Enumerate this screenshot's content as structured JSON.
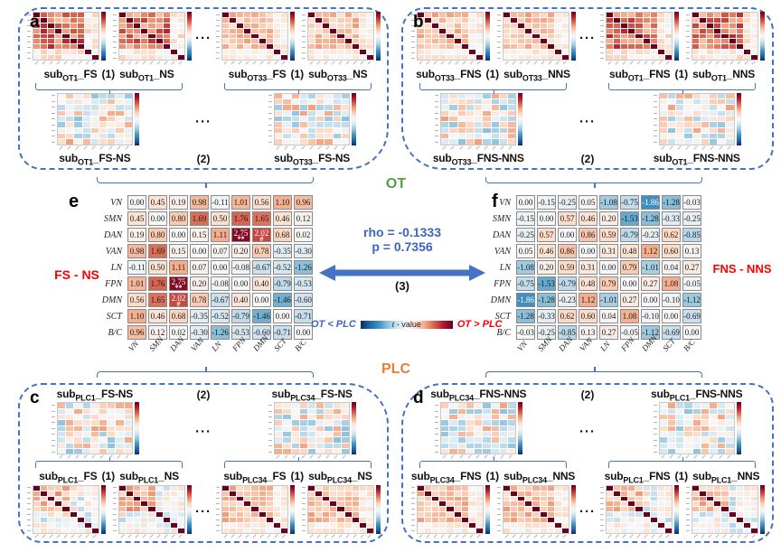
{
  "figure": {
    "ot_label": "OT",
    "plc_label": "PLC",
    "sub_prefix": "sub",
    "dots": "···",
    "colors": {
      "accent_blue": "#4472C4",
      "ot_green": "#58A044",
      "plc_orange": "#ED7D31",
      "contrast_red": "#FF0000",
      "cmap_negative_end": "#053061",
      "cmap_positive_end": "#67001F"
    }
  },
  "center": {
    "rho_line": "rho = -0.1333",
    "p_line": "p = 0.7356",
    "step3": "(3)",
    "colorbar": {
      "left_label": "OT < PLC",
      "title_t": "t",
      "title_rest": " - value",
      "right_label": "OT > PLC"
    }
  },
  "network_labels": [
    "VN",
    "SMN",
    "DAN",
    "VAN",
    "LN",
    "FPN",
    "DMN",
    "SCT",
    "B/C"
  ],
  "matrix_e": {
    "letter": "e",
    "side_label": "FS - NS",
    "values": [
      [
        0.0,
        0.45,
        0.19,
        0.98,
        -0.11,
        1.01,
        0.56,
        1.1,
        0.96
      ],
      [
        0.45,
        0.0,
        0.8,
        1.69,
        0.5,
        1.76,
        1.65,
        0.46,
        0.12
      ],
      [
        0.19,
        0.8,
        0.0,
        0.15,
        1.11,
        2.75,
        2.02,
        0.68,
        0.02
      ],
      [
        0.98,
        1.69,
        0.15,
        0.0,
        0.07,
        0.2,
        0.78,
        -0.35,
        -0.3
      ],
      [
        -0.11,
        0.5,
        1.11,
        0.07,
        0.0,
        -0.08,
        -0.67,
        -0.52,
        -1.26
      ],
      [
        1.01,
        1.76,
        2.75,
        0.2,
        -0.08,
        0.0,
        0.4,
        -0.79,
        -0.53
      ],
      [
        0.56,
        1.65,
        2.02,
        0.78,
        -0.67,
        0.4,
        0.0,
        -1.46,
        -0.6
      ],
      [
        1.1,
        0.46,
        0.68,
        -0.35,
        -0.52,
        -0.79,
        -1.46,
        0.0,
        -0.71
      ],
      [
        0.96,
        0.12,
        0.02,
        -0.3,
        -1.26,
        -0.53,
        -0.6,
        -0.71,
        0.0
      ]
    ],
    "markers": [
      [
        2,
        5,
        "**"
      ],
      [
        5,
        2,
        "**"
      ],
      [
        2,
        6,
        "#"
      ],
      [
        6,
        2,
        "#"
      ]
    ]
  },
  "matrix_f": {
    "letter": "f",
    "side_label": "FNS - NNS",
    "values": [
      [
        0.0,
        -0.15,
        -0.25,
        0.05,
        -1.08,
        -0.75,
        -1.86,
        -1.28,
        -0.03
      ],
      [
        -0.15,
        0.0,
        0.57,
        0.46,
        0.2,
        -1.53,
        -1.28,
        -0.33,
        -0.25
      ],
      [
        -0.25,
        0.57,
        0.0,
        0.86,
        0.59,
        -0.79,
        -0.23,
        0.62,
        -0.85
      ],
      [
        0.05,
        0.46,
        0.86,
        0.0,
        0.31,
        0.48,
        1.12,
        0.6,
        0.13
      ],
      [
        -1.08,
        0.2,
        0.59,
        0.31,
        0.0,
        0.79,
        -1.01,
        0.04,
        0.27
      ],
      [
        -0.75,
        -1.53,
        -0.79,
        0.48,
        0.79,
        0.0,
        0.27,
        1.08,
        -0.05
      ],
      [
        -1.86,
        -1.28,
        -0.23,
        1.12,
        -1.01,
        0.27,
        0.0,
        -0.1,
        -1.12
      ],
      [
        -1.28,
        -0.33,
        0.62,
        0.6,
        0.04,
        1.08,
        -0.1,
        0.0,
        -0.69
      ],
      [
        -0.03,
        -0.25,
        -0.85,
        0.13,
        0.27,
        -0.05,
        -1.12,
        -0.69,
        0.0
      ]
    ],
    "markers": []
  },
  "panels": {
    "a": {
      "letter": "a",
      "orientation": "top",
      "corr_groups": [
        {
          "pair": [
            {
              "sub": "OT1",
              "cond": "FS"
            },
            {
              "sub": "OT1",
              "cond": "NS"
            }
          ],
          "step": "(1)",
          "style": "corr-dark",
          "seeds": [
            1,
            2
          ]
        },
        {
          "pair": [
            {
              "sub": "OT33",
              "cond": "FS"
            },
            {
              "sub": "OT33",
              "cond": "NS"
            }
          ],
          "step": "(1)",
          "style": "corr-light",
          "seeds": [
            3,
            4
          ]
        }
      ],
      "diff_maps": [
        {
          "sub": "OT1",
          "cond": "FS-NS",
          "seed": 5
        },
        {
          "sub": "OT33",
          "cond": "FS-NS",
          "seed": 6
        }
      ],
      "diff_step": "(2)"
    },
    "b": {
      "letter": "b",
      "orientation": "top",
      "corr_groups": [
        {
          "pair": [
            {
              "sub": "OT33",
              "cond": "FNS"
            },
            {
              "sub": "OT33",
              "cond": "NNS"
            }
          ],
          "step": "(1)",
          "style": "corr-light",
          "seeds": [
            7,
            8
          ]
        },
        {
          "pair": [
            {
              "sub": "OT1",
              "cond": "FNS"
            },
            {
              "sub": "OT1",
              "cond": "NNS"
            }
          ],
          "step": "(1)",
          "style": "corr-dark",
          "seeds": [
            9,
            10
          ]
        }
      ],
      "diff_maps": [
        {
          "sub": "OT33",
          "cond": "FNS-NNS",
          "seed": 11
        },
        {
          "sub": "OT1",
          "cond": "FNS-NNS",
          "seed": 12
        }
      ],
      "diff_step": "(2)"
    },
    "c": {
      "letter": "c",
      "orientation": "bottom",
      "corr_groups": [
        {
          "pair": [
            {
              "sub": "PLC1",
              "cond": "FS"
            },
            {
              "sub": "PLC1",
              "cond": "NS"
            }
          ],
          "step": "(1)",
          "style": "corr-mixed",
          "seeds": [
            13,
            14
          ]
        },
        {
          "pair": [
            {
              "sub": "PLC34",
              "cond": "FS"
            },
            {
              "sub": "PLC34",
              "cond": "NS"
            }
          ],
          "step": "(1)",
          "style": "corr-light",
          "seeds": [
            15,
            16
          ]
        }
      ],
      "diff_maps": [
        {
          "sub": "PLC1",
          "cond": "FS-NS",
          "seed": 17
        },
        {
          "sub": "PLC34",
          "cond": "FS-NS",
          "seed": 18
        }
      ],
      "diff_step": "(2)"
    },
    "d": {
      "letter": "d",
      "orientation": "bottom",
      "corr_groups": [
        {
          "pair": [
            {
              "sub": "PLC34",
              "cond": "FNS"
            },
            {
              "sub": "PLC34",
              "cond": "NNS"
            }
          ],
          "step": "(1)",
          "style": "corr-light",
          "seeds": [
            19,
            20
          ]
        },
        {
          "pair": [
            {
              "sub": "PLC1",
              "cond": "FNS"
            },
            {
              "sub": "PLC1",
              "cond": "NNS"
            }
          ],
          "step": "(1)",
          "style": "corr-mixed",
          "seeds": [
            21,
            22
          ]
        }
      ],
      "diff_maps": [
        {
          "sub": "PLC34",
          "cond": "FNS-NNS",
          "seed": 23
        },
        {
          "sub": "PLC1",
          "cond": "FNS-NNS",
          "seed": 24
        }
      ],
      "diff_step": "(2)"
    }
  },
  "chart_data": [
    {
      "type": "heatmap",
      "title": "FS - NS",
      "panel": "e",
      "x_labels": [
        "VN",
        "SMN",
        "DAN",
        "VAN",
        "LN",
        "FPN",
        "DMN",
        "SCT",
        "B/C"
      ],
      "y_labels": [
        "VN",
        "SMN",
        "DAN",
        "VAN",
        "LN",
        "FPN",
        "DMN",
        "SCT",
        "B/C"
      ],
      "values": [
        [
          0.0,
          0.45,
          0.19,
          0.98,
          -0.11,
          1.01,
          0.56,
          1.1,
          0.96
        ],
        [
          0.45,
          0.0,
          0.8,
          1.69,
          0.5,
          1.76,
          1.65,
          0.46,
          0.12
        ],
        [
          0.19,
          0.8,
          0.0,
          0.15,
          1.11,
          2.75,
          2.02,
          0.68,
          0.02
        ],
        [
          0.98,
          1.69,
          0.15,
          0.0,
          0.07,
          0.2,
          0.78,
          -0.35,
          -0.3
        ],
        [
          -0.11,
          0.5,
          1.11,
          0.07,
          0.0,
          -0.08,
          -0.67,
          -0.52,
          -1.26
        ],
        [
          1.01,
          1.76,
          2.75,
          0.2,
          -0.08,
          0.0,
          0.4,
          -0.79,
          -0.53
        ],
        [
          0.56,
          1.65,
          2.02,
          0.78,
          -0.67,
          0.4,
          0.0,
          -1.46,
          -0.6
        ],
        [
          1.1,
          0.46,
          0.68,
          -0.35,
          -0.52,
          -0.79,
          -1.46,
          0.0,
          -0.71
        ],
        [
          0.96,
          0.12,
          0.02,
          -0.3,
          -1.26,
          -0.53,
          -0.6,
          -0.71,
          0.0
        ]
      ],
      "significance_markers": [
        {
          "row": "DAN",
          "col": "FPN",
          "value": 2.75,
          "marker": "**"
        },
        {
          "row": "DAN",
          "col": "DMN",
          "value": 2.02,
          "marker": "#"
        }
      ],
      "colorbar": {
        "label": "t - value",
        "left_label": "OT < PLC",
        "right_label": "OT > PLC",
        "range": [
          -3,
          3
        ]
      }
    },
    {
      "type": "heatmap",
      "title": "FNS - NNS",
      "panel": "f",
      "x_labels": [
        "VN",
        "SMN",
        "DAN",
        "VAN",
        "LN",
        "FPN",
        "DMN",
        "SCT",
        "B/C"
      ],
      "y_labels": [
        "VN",
        "SMN",
        "DAN",
        "VAN",
        "LN",
        "FPN",
        "DMN",
        "SCT",
        "B/C"
      ],
      "values": [
        [
          0.0,
          -0.15,
          -0.25,
          0.05,
          -1.08,
          -0.75,
          -1.86,
          -1.28,
          -0.03
        ],
        [
          -0.15,
          0.0,
          0.57,
          0.46,
          0.2,
          -1.53,
          -1.28,
          -0.33,
          -0.25
        ],
        [
          -0.25,
          0.57,
          0.0,
          0.86,
          0.59,
          -0.79,
          -0.23,
          0.62,
          -0.85
        ],
        [
          0.05,
          0.46,
          0.86,
          0.0,
          0.31,
          0.48,
          1.12,
          0.6,
          0.13
        ],
        [
          -1.08,
          0.2,
          0.59,
          0.31,
          0.0,
          0.79,
          -1.01,
          0.04,
          0.27
        ],
        [
          -0.75,
          -1.53,
          -0.79,
          0.48,
          0.79,
          0.0,
          0.27,
          1.08,
          -0.05
        ],
        [
          -1.86,
          -1.28,
          -0.23,
          1.12,
          -1.01,
          0.27,
          0.0,
          -0.1,
          -1.12
        ],
        [
          -1.28,
          -0.33,
          0.62,
          0.6,
          0.04,
          1.08,
          -0.1,
          0.0,
          -0.69
        ],
        [
          -0.03,
          -0.25,
          -0.85,
          0.13,
          0.27,
          -0.05,
          -1.12,
          -0.69,
          0.0
        ]
      ],
      "significance_markers": [],
      "colorbar": {
        "label": "t - value",
        "left_label": "OT < PLC",
        "right_label": "OT > PLC",
        "range": [
          -3,
          3
        ]
      }
    },
    {
      "type": "stat",
      "rho": -0.1333,
      "p": 0.7356,
      "description_lines": [
        "rho = -0.1333",
        "p = 0.7356"
      ]
    }
  ]
}
